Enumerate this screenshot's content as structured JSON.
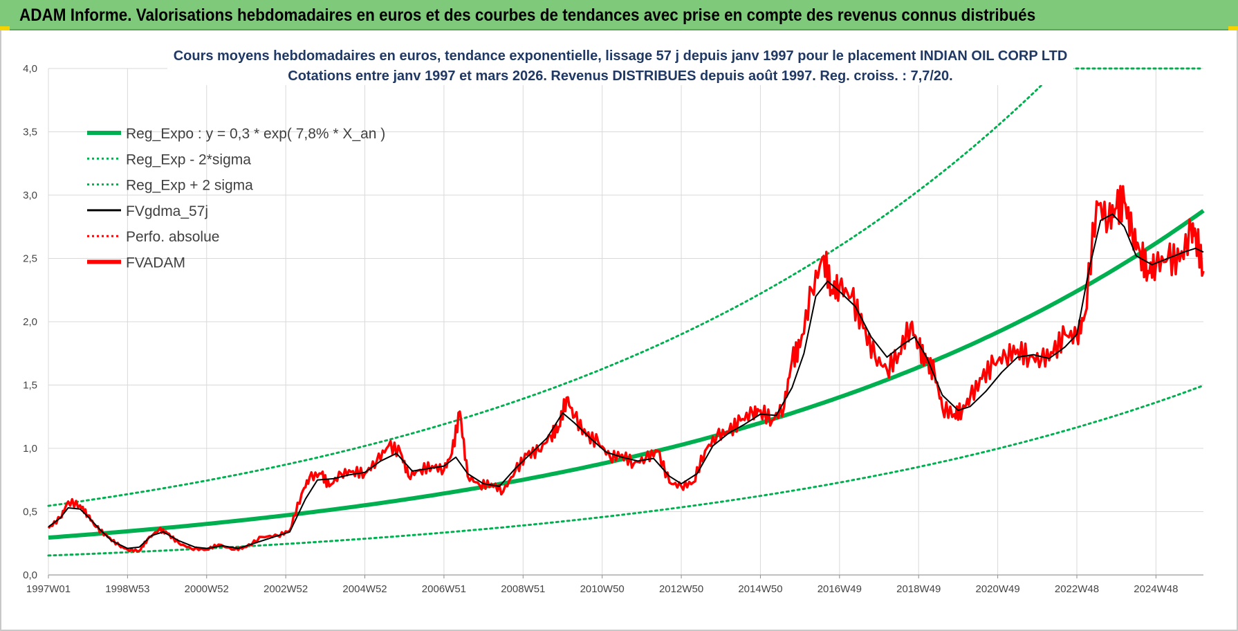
{
  "header": {
    "title": "ADAM Informe. Valorisations hebdomadaires en euros et des courbes de tendances avec prise en compte des revenus connus distribués"
  },
  "colors": {
    "banner": "#7fc97a",
    "green": "#00b050",
    "black": "#000000",
    "red": "#ff0000",
    "title": "#1f3864"
  },
  "chart_data": {
    "type": "line",
    "title": "Cours moyens hebdomadaires en euros, tendance exponentielle, lissage 57 j depuis janv 1997  pour le placement INDIAN OIL CORP LTD",
    "subtitle": "Cotations entre janv 1997 et mars 2026. Revenus DISTRIBUES depuis août 1997. Reg. croiss. : 7,7/20.",
    "xlabel": "",
    "ylabel": "",
    "xlim": [
      1997.0,
      2026.2
    ],
    "ylim": [
      0,
      4.0
    ],
    "x_ticks": [
      {
        "x": 1997.0,
        "label": "1997W01"
      },
      {
        "x": 1999.0,
        "label": "1998W53"
      },
      {
        "x": 2001.0,
        "label": "2000W52"
      },
      {
        "x": 2003.0,
        "label": "2002W52"
      },
      {
        "x": 2005.0,
        "label": "2004W52"
      },
      {
        "x": 2007.0,
        "label": "2006W51"
      },
      {
        "x": 2009.0,
        "label": "2008W51"
      },
      {
        "x": 2011.0,
        "label": "2010W50"
      },
      {
        "x": 2013.0,
        "label": "2012W50"
      },
      {
        "x": 2015.0,
        "label": "2014W50"
      },
      {
        "x": 2017.0,
        "label": "2016W49"
      },
      {
        "x": 2019.0,
        "label": "2018W49"
      },
      {
        "x": 2021.0,
        "label": "2020W49"
      },
      {
        "x": 2023.0,
        "label": "2022W48"
      },
      {
        "x": 2025.0,
        "label": "2024W48"
      }
    ],
    "y_ticks": [
      {
        "y": 0.0,
        "label": "0,0"
      },
      {
        "y": 0.5,
        "label": "0,5"
      },
      {
        "y": 1.0,
        "label": "1,0"
      },
      {
        "y": 1.5,
        "label": "1,5"
      },
      {
        "y": 2.0,
        "label": "2,0"
      },
      {
        "y": 2.5,
        "label": "2,5"
      },
      {
        "y": 3.0,
        "label": "3,0"
      },
      {
        "y": 3.5,
        "label": "3,5"
      },
      {
        "y": 4.0,
        "label": "4,0"
      }
    ],
    "legend": [
      {
        "label": "Reg_Expo : y = 0,3 * exp( 7,8% *  X_an )",
        "color": "#00b050",
        "style": "solid-thick"
      },
      {
        "label": "Reg_Exp - 2*sigma",
        "color": "#00b050",
        "style": "dotted"
      },
      {
        "label": "Reg_Exp + 2 sigma",
        "color": "#00b050",
        "style": "dotted"
      },
      {
        "label": "FVgdma_57j",
        "color": "#000000",
        "style": "solid"
      },
      {
        "label": "Perfo. absolue",
        "color": "#ff0000",
        "style": "dotted"
      },
      {
        "label": "FVADAM",
        "color": "#ff0000",
        "style": "solid-thick"
      }
    ],
    "legend_position": "top-left",
    "regression": {
      "a": 0.295,
      "rate": 0.078,
      "minus_factor": 0.52,
      "plus_factor": 1.85
    },
    "series": [
      {
        "name": "FVADAM",
        "x": [
          1997.0,
          1997.3,
          1997.5,
          1997.8,
          1998.0,
          1998.2,
          1998.5,
          1998.8,
          1999.0,
          1999.3,
          1999.5,
          1999.8,
          2000.0,
          2000.3,
          2000.6,
          2001.0,
          2001.3,
          2001.7,
          2002.0,
          2002.4,
          2002.8,
          2003.1,
          2003.4,
          2003.6,
          2003.9,
          2004.1,
          2004.4,
          2004.7,
          2005.0,
          2005.3,
          2005.6,
          2005.9,
          2006.1,
          2006.4,
          2006.7,
          2007.0,
          2007.2,
          2007.4,
          2007.6,
          2007.9,
          2008.2,
          2008.5,
          2008.8,
          2009.1,
          2009.4,
          2009.7,
          2009.9,
          2010.1,
          2010.3,
          2010.6,
          2010.9,
          2011.2,
          2011.5,
          2011.8,
          2012.1,
          2012.4,
          2012.7,
          2013.0,
          2013.3,
          2013.6,
          2013.9,
          2014.2,
          2014.5,
          2014.8,
          2015.0,
          2015.3,
          2015.6,
          2015.8,
          2016.0,
          2016.3,
          2016.6,
          2016.8,
          2017.0,
          2017.3,
          2017.6,
          2017.9,
          2018.2,
          2018.5,
          2018.8,
          2019.0,
          2019.2,
          2019.4,
          2019.6,
          2019.9,
          2020.1,
          2020.3,
          2020.6,
          2020.9,
          2021.2,
          2021.5,
          2021.8,
          2022.1,
          2022.4,
          2022.7,
          2023.0,
          2023.2,
          2023.5,
          2023.8,
          2024.0,
          2024.2,
          2024.4,
          2024.6,
          2024.8,
          2025.0,
          2025.3,
          2025.6,
          2025.9,
          2026.0,
          2026.2
        ],
        "y": [
          0.37,
          0.45,
          0.58,
          0.55,
          0.47,
          0.38,
          0.3,
          0.23,
          0.2,
          0.19,
          0.28,
          0.36,
          0.33,
          0.25,
          0.21,
          0.2,
          0.24,
          0.2,
          0.22,
          0.3,
          0.31,
          0.35,
          0.64,
          0.77,
          0.8,
          0.7,
          0.8,
          0.82,
          0.8,
          0.9,
          1.02,
          0.97,
          0.78,
          0.83,
          0.86,
          0.83,
          0.96,
          1.29,
          0.78,
          0.71,
          0.72,
          0.66,
          0.82,
          0.95,
          0.98,
          1.1,
          1.17,
          1.4,
          1.25,
          1.1,
          1.05,
          0.93,
          0.95,
          0.88,
          0.92,
          0.98,
          0.73,
          0.7,
          0.73,
          0.98,
          1.1,
          1.13,
          1.22,
          1.28,
          1.3,
          1.22,
          1.33,
          1.7,
          1.8,
          2.25,
          2.52,
          2.25,
          2.28,
          2.2,
          1.95,
          1.72,
          1.62,
          1.75,
          1.98,
          1.8,
          1.68,
          1.6,
          1.32,
          1.27,
          1.3,
          1.4,
          1.55,
          1.67,
          1.73,
          1.78,
          1.72,
          1.7,
          1.75,
          1.9,
          1.88,
          2.05,
          2.95,
          2.8,
          2.9,
          2.95,
          2.7,
          2.55,
          2.4,
          2.45,
          2.5,
          2.48,
          2.72,
          2.7,
          2.4
        ]
      },
      {
        "name": "FVgdma_57j",
        "x": [
          1997.0,
          1997.3,
          1997.5,
          1997.8,
          1998.0,
          1998.3,
          1998.6,
          1999.0,
          1999.3,
          1999.6,
          1999.9,
          2000.3,
          2000.7,
          2001.0,
          2001.4,
          2001.8,
          2002.2,
          2002.7,
          2003.1,
          2003.5,
          2003.8,
          2004.2,
          2004.6,
          2005.0,
          2005.4,
          2005.8,
          2006.2,
          2006.6,
          2007.0,
          2007.3,
          2007.6,
          2008.0,
          2008.4,
          2008.8,
          2009.2,
          2009.6,
          2010.0,
          2010.3,
          2010.7,
          2011.1,
          2011.5,
          2011.9,
          2012.3,
          2012.7,
          2013.0,
          2013.4,
          2013.8,
          2014.2,
          2014.6,
          2015.0,
          2015.4,
          2015.8,
          2016.1,
          2016.4,
          2016.7,
          2017.0,
          2017.4,
          2017.8,
          2018.2,
          2018.6,
          2018.9,
          2019.2,
          2019.6,
          2020.0,
          2020.3,
          2020.7,
          2021.1,
          2021.5,
          2021.9,
          2022.3,
          2022.7,
          2023.0,
          2023.3,
          2023.6,
          2023.9,
          2024.2,
          2024.5,
          2024.9,
          2025.3,
          2025.7,
          2026.0,
          2026.2
        ],
        "y": [
          0.38,
          0.45,
          0.53,
          0.52,
          0.46,
          0.36,
          0.27,
          0.21,
          0.22,
          0.31,
          0.34,
          0.27,
          0.22,
          0.21,
          0.23,
          0.21,
          0.25,
          0.3,
          0.34,
          0.6,
          0.75,
          0.76,
          0.79,
          0.81,
          0.9,
          0.96,
          0.82,
          0.84,
          0.86,
          0.93,
          0.8,
          0.72,
          0.7,
          0.84,
          0.96,
          1.08,
          1.28,
          1.2,
          1.08,
          0.97,
          0.93,
          0.9,
          0.92,
          0.78,
          0.72,
          0.8,
          1.02,
          1.12,
          1.19,
          1.27,
          1.26,
          1.48,
          1.75,
          2.2,
          2.32,
          2.24,
          2.12,
          1.88,
          1.72,
          1.82,
          1.88,
          1.72,
          1.42,
          1.3,
          1.33,
          1.45,
          1.6,
          1.72,
          1.74,
          1.71,
          1.8,
          1.9,
          2.4,
          2.8,
          2.85,
          2.75,
          2.52,
          2.45,
          2.5,
          2.55,
          2.58,
          2.55
        ]
      }
    ]
  }
}
